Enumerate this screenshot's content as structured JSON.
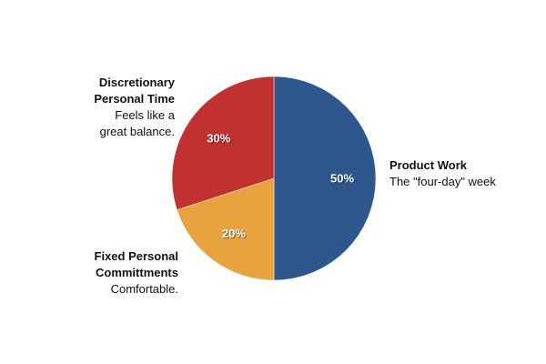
{
  "chart_data": {
    "type": "pie",
    "slices": [
      {
        "name": "Product Work",
        "value": 50,
        "display": "50%",
        "color": "#2e578e",
        "description": "The \"four-day\" week"
      },
      {
        "name": "Fixed Personal Committments",
        "value": 20,
        "display": "20%",
        "color": "#e8a33e",
        "description": "Comfortable."
      },
      {
        "name": "Discretionary Personal Time",
        "value": 30,
        "display": "30%",
        "color": "#c0312f",
        "description": "Feels like a great balance."
      }
    ],
    "legend": "none",
    "start": "top",
    "direction": "clockwise"
  },
  "labels": {
    "product": {
      "title": "Product Work",
      "desc": "The \"four-day\" week"
    },
    "fixed": {
      "title_line1": "Fixed Personal",
      "title_line2": "Committments",
      "desc": "Comfortable."
    },
    "discretionary": {
      "title_line1": "Discretionary",
      "title_line2": "Personal Time",
      "desc_line1": "Feels like a",
      "desc_line2": "great balance."
    }
  }
}
